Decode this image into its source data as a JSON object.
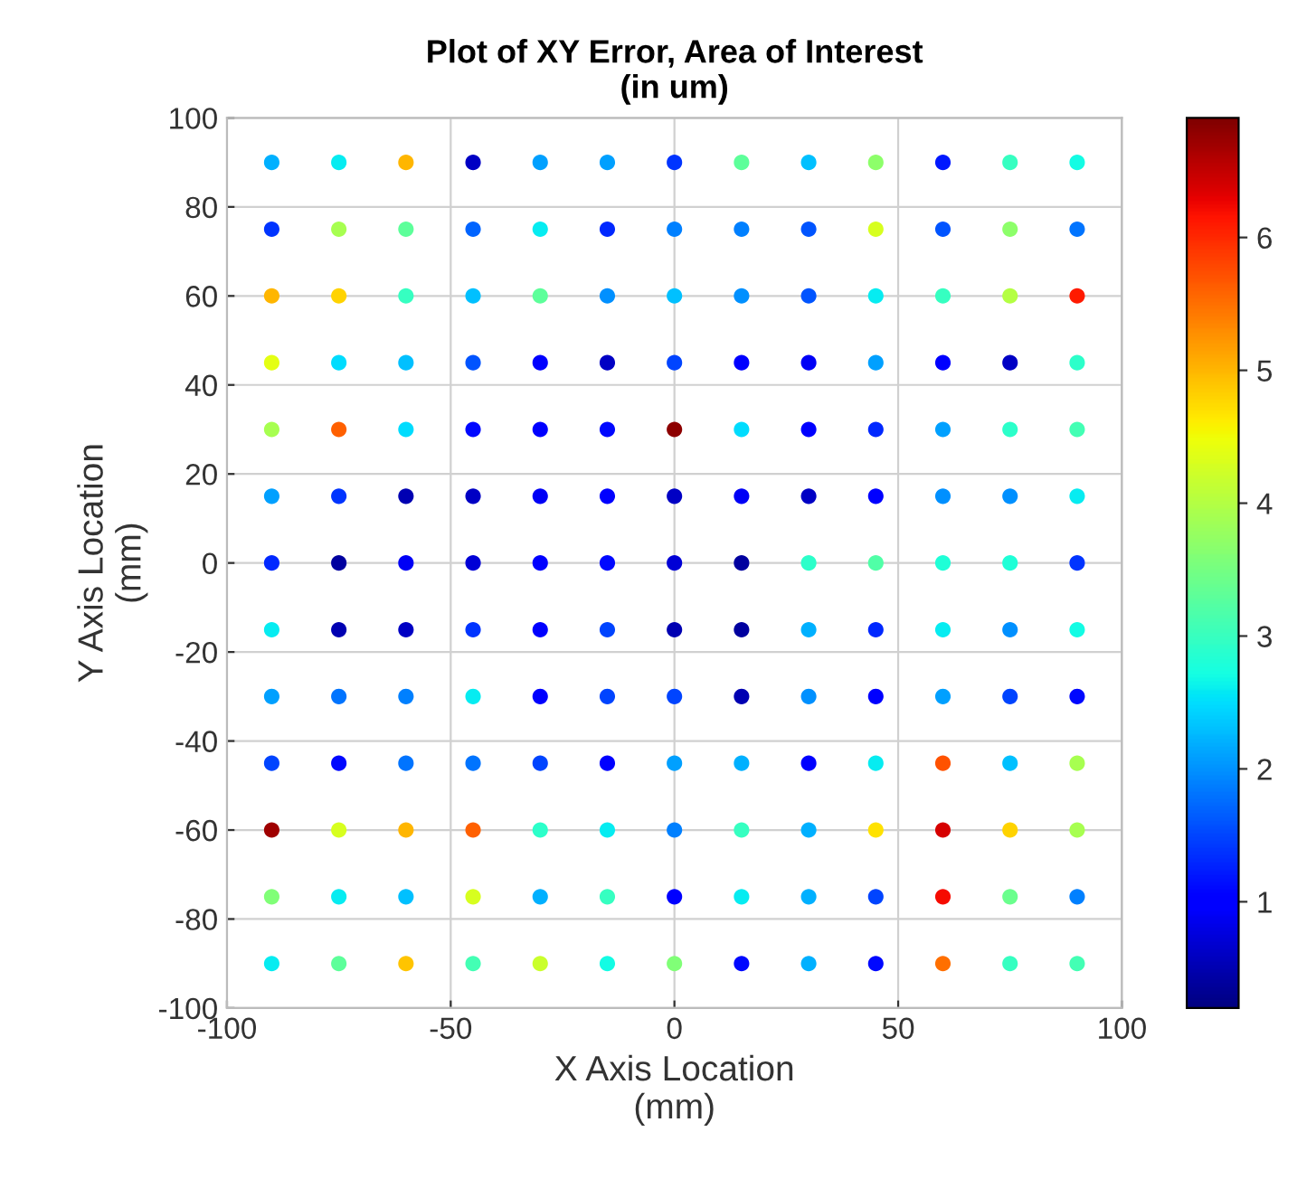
{
  "chart_data": {
    "type": "scatter",
    "title": "Plot of XY Error, Area of Interest\n(in um)",
    "xlabel": "X Axis Location\n(mm)",
    "ylabel": "Y Axis Location\n(mm)",
    "xlim": [
      -100,
      100
    ],
    "ylim": [
      -100,
      100
    ],
    "xticks": [
      -100,
      -50,
      0,
      50,
      100
    ],
    "yticks": [
      -100,
      -80,
      -60,
      -40,
      -20,
      0,
      20,
      40,
      60,
      80,
      100
    ],
    "grid": true,
    "marker": "circle",
    "clim": [
      0.2,
      6.9
    ],
    "cticks": [
      1,
      2,
      3,
      4,
      5,
      6
    ],
    "x": [
      -90,
      -75,
      -60,
      -45,
      -30,
      -15,
      0,
      15,
      30,
      45,
      60,
      75,
      90,
      -90,
      -75,
      -60,
      -45,
      -30,
      -15,
      0,
      15,
      30,
      45,
      60,
      75,
      90,
      -90,
      -75,
      -60,
      -45,
      -30,
      -15,
      0,
      15,
      30,
      45,
      60,
      75,
      90,
      -90,
      -75,
      -60,
      -45,
      -30,
      -15,
      0,
      15,
      30,
      45,
      60,
      75,
      90,
      -90,
      -75,
      -60,
      -45,
      -30,
      -15,
      0,
      15,
      30,
      45,
      60,
      75,
      90,
      -90,
      -75,
      -60,
      -45,
      -30,
      -15,
      0,
      15,
      30,
      45,
      60,
      75,
      90,
      -90,
      -75,
      -60,
      -45,
      -30,
      -15,
      0,
      15,
      30,
      45,
      60,
      75,
      90,
      -90,
      -75,
      -60,
      -45,
      -30,
      -15,
      0,
      15,
      30,
      45,
      60,
      75,
      90,
      -90,
      -75,
      -60,
      -45,
      -30,
      -15,
      0,
      15,
      30,
      45,
      60,
      75,
      90,
      -90,
      -75,
      -60,
      -45,
      -30,
      -15,
      0,
      15,
      30,
      45,
      60,
      75,
      90,
      -90,
      -75,
      -60,
      -45,
      -30,
      -15,
      0,
      15,
      30,
      45,
      60,
      75,
      90,
      -90,
      -75,
      -60,
      -45,
      -30,
      -15,
      0,
      15,
      30,
      45,
      60,
      75,
      90,
      -90,
      -75,
      -60,
      -45,
      -30,
      -15,
      0,
      15,
      30,
      45,
      60,
      75,
      90
    ],
    "values": [
      90,
      90,
      90,
      90,
      90,
      90,
      90,
      90,
      90,
      90,
      90,
      90,
      90,
      75,
      75,
      75,
      75,
      75,
      75,
      75,
      75,
      75,
      75,
      75,
      75,
      75,
      60,
      60,
      60,
      60,
      60,
      60,
      60,
      60,
      60,
      60,
      60,
      60,
      60,
      45,
      45,
      45,
      45,
      45,
      45,
      45,
      45,
      45,
      45,
      45,
      45,
      45,
      30,
      30,
      30,
      30,
      30,
      30,
      30,
      30,
      30,
      30,
      30,
      30,
      30,
      15,
      15,
      15,
      15,
      15,
      15,
      15,
      15,
      15,
      15,
      15,
      15,
      15,
      0,
      0,
      0,
      0,
      0,
      0,
      0,
      0,
      0,
      0,
      0,
      0,
      0,
      -15,
      -15,
      -15,
      -15,
      -15,
      -15,
      -15,
      -15,
      -15,
      -15,
      -15,
      -15,
      -15,
      -30,
      -30,
      -30,
      -30,
      -30,
      -30,
      -30,
      -30,
      -30,
      -30,
      -30,
      -30,
      -30,
      -45,
      -45,
      -45,
      -45,
      -45,
      -45,
      -45,
      -45,
      -45,
      -45,
      -45,
      -45,
      -45,
      -60,
      -60,
      -60,
      -60,
      -60,
      -60,
      -60,
      -60,
      -60,
      -60,
      -60,
      -60,
      -60,
      -75,
      -75,
      -75,
      -75,
      -75,
      -75,
      -75,
      -75,
      -75,
      -75,
      -75,
      -75,
      -75,
      -90,
      -90,
      -90,
      -90,
      -90,
      -90,
      -90,
      -90,
      -90,
      -90,
      -90,
      -90,
      -90
    ],
    "cvalues": [
      2.2,
      2.6,
      5.0,
      0.6,
      2.1,
      2.1,
      1.4,
      3.3,
      2.3,
      3.7,
      1.2,
      3.0,
      2.7,
      1.4,
      3.9,
      3.3,
      1.7,
      2.6,
      1.3,
      1.9,
      1.9,
      1.6,
      4.3,
      1.6,
      3.7,
      1.8,
      5.0,
      4.8,
      3.0,
      2.3,
      3.3,
      2.0,
      2.3,
      2.0,
      1.6,
      2.6,
      3.0,
      4.0,
      6.1,
      4.4,
      2.5,
      2.3,
      1.6,
      1.0,
      0.6,
      1.5,
      1.0,
      0.9,
      2.1,
      1.0,
      0.6,
      2.9,
      3.9,
      5.6,
      2.5,
      1.1,
      1.0,
      1.1,
      6.8,
      2.5,
      1.0,
      1.3,
      2.1,
      2.9,
      3.1,
      2.1,
      1.4,
      0.5,
      0.6,
      0.9,
      1.0,
      0.6,
      0.9,
      0.6,
      1.0,
      2.0,
      2.0,
      2.6,
      1.3,
      0.4,
      0.9,
      0.7,
      1.0,
      1.1,
      0.7,
      0.4,
      2.9,
      3.2,
      2.8,
      2.8,
      1.4,
      2.6,
      0.5,
      0.6,
      1.4,
      1.0,
      1.5,
      0.5,
      0.4,
      2.2,
      1.3,
      2.6,
      2.0,
      2.7,
      2.1,
      1.8,
      1.9,
      2.6,
      1.0,
      1.5,
      1.5,
      0.5,
      2.0,
      1.0,
      2.1,
      1.5,
      1.1,
      1.5,
      1.1,
      1.8,
      1.8,
      1.5,
      1.0,
      2.1,
      2.2,
      1.0,
      2.6,
      5.7,
      2.3,
      3.9,
      6.7,
      4.3,
      5.0,
      5.6,
      2.9,
      2.6,
      1.9,
      3.0,
      2.2,
      4.7,
      6.4,
      4.8,
      3.9,
      3.6,
      2.6,
      2.3,
      4.3,
      2.2,
      3.0,
      1.0,
      2.6,
      2.2,
      1.5,
      6.2,
      3.4,
      1.9,
      2.6,
      3.3,
      4.9,
      3.1,
      4.2,
      2.7,
      3.6,
      1.1,
      2.2,
      1.1,
      5.5,
      3.0,
      3.1
    ]
  }
}
